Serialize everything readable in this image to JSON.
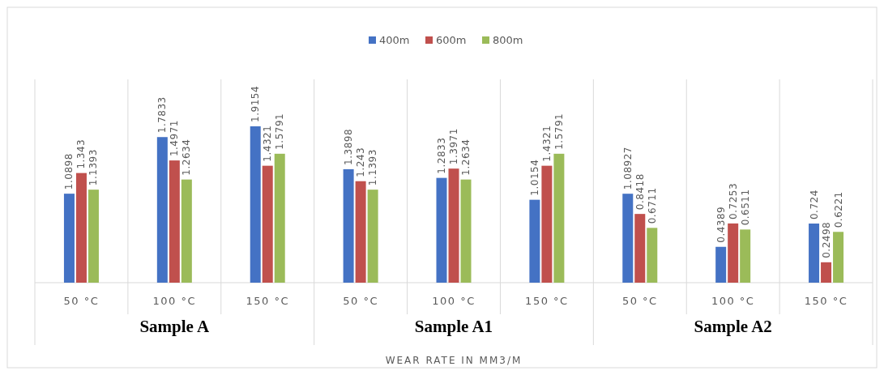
{
  "chart_data": {
    "type": "bar",
    "xlabel": "WEAR RATE IN MM3/M",
    "categories": [
      "50 °C",
      "100 °C",
      "150 °C",
      "50 °C",
      "100 °C",
      "150 °C",
      "50 °C",
      "100 °C",
      "150 °C"
    ],
    "series": [
      {
        "name": "400m",
        "color": "#4472c4",
        "values": [
          1.0898,
          1.7833,
          1.9154,
          1.3898,
          1.2833,
          1.0154,
          1.08927,
          0.4389,
          0.724
        ]
      },
      {
        "name": "600m",
        "color": "#c0504d",
        "values": [
          1.343,
          1.4971,
          1.4321,
          1.243,
          1.3971,
          1.4321,
          0.8418,
          0.7253,
          0.2498
        ]
      },
      {
        "name": "800m",
        "color": "#9bbb59",
        "values": [
          1.1393,
          1.2634,
          1.5791,
          1.1393,
          1.2634,
          1.5791,
          0.6711,
          0.6511,
          0.6221
        ]
      }
    ],
    "annotations": [
      "Sample A",
      "Sample A1",
      "Sample A2"
    ],
    "data_labels": true,
    "legend": "top"
  }
}
